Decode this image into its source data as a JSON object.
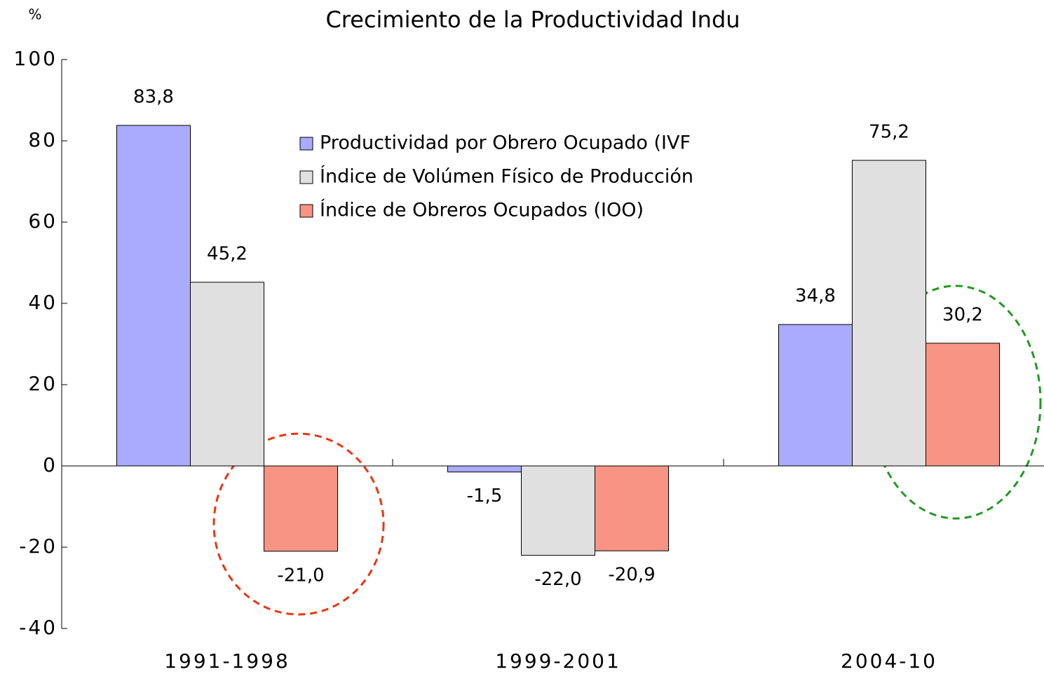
{
  "chart_data": {
    "type": "bar",
    "title": "Crecimiento de la Productividad Indu",
    "y_label": "%",
    "categories": [
      "1991-1998",
      "1999-2001",
      "2004-10"
    ],
    "series": [
      {
        "name": "Productividad por Obrero Ocupado (IVF",
        "color": "#aaaaff",
        "values": [
          83.8,
          -1.5,
          34.8
        ],
        "value_labels": [
          "83,8",
          "-1,5",
          "34,8"
        ]
      },
      {
        "name": "Índice de Volúmen Físico de Producción",
        "color": "#e0e0e0",
        "values": [
          45.2,
          -22.0,
          75.2
        ],
        "value_labels": [
          "45,2",
          "-22,0",
          "75,2"
        ]
      },
      {
        "name": "Índice de Obreros Ocupados (IOO)",
        "color": "#f79483",
        "values": [
          -21.0,
          -20.9,
          30.2
        ],
        "value_labels": [
          "-21,0",
          "-20,9",
          "30,2"
        ]
      }
    ],
    "ylim": [
      -40,
      100
    ],
    "yticks": [
      -40,
      -20,
      0,
      20,
      40,
      60,
      80,
      100
    ],
    "grid": false
  }
}
